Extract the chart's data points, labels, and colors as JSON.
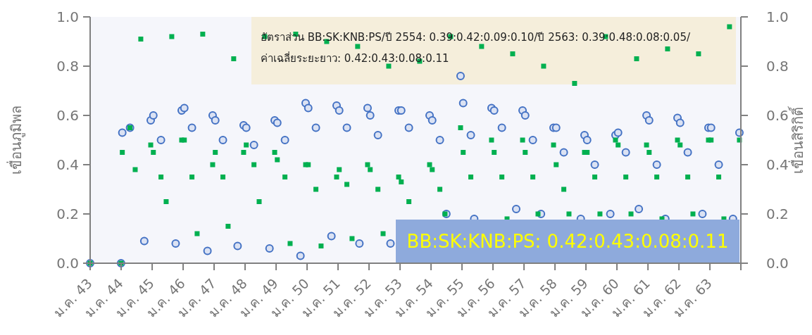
{
  "chart_data": {
    "type": "scatter",
    "ylabel": "เขื่อนภูมิพล",
    "y2label": "เขื่อนสิริกิติ์",
    "xlim": [
      "2543-01-01",
      "2564-01-01"
    ],
    "xticks": [
      {
        "value": "2543-01-01",
        "label": "ม.ค. 43"
      },
      {
        "value": "2544-01-01",
        "label": "ม.ค. 44"
      },
      {
        "value": "2545-01-01",
        "label": "ม.ค. 45"
      },
      {
        "value": "2546-01-01",
        "label": "ม.ค. 46"
      },
      {
        "value": "2547-01-01",
        "label": "ม.ค. 47"
      },
      {
        "value": "2548-01-01",
        "label": "ม.ค. 48"
      },
      {
        "value": "2549-01-01",
        "label": "ม.ค. 49"
      },
      {
        "value": "2550-01-01",
        "label": "ม.ค. 50"
      },
      {
        "value": "2551-01-01",
        "label": "ม.ค. 51"
      },
      {
        "value": "2552-01-01",
        "label": "ม.ค. 52"
      },
      {
        "value": "2553-01-01",
        "label": "ม.ค. 53"
      },
      {
        "value": "2554-01-01",
        "label": "ม.ค. 54"
      },
      {
        "value": "2555-01-01",
        "label": "ม.ค. 55"
      },
      {
        "value": "2556-01-01",
        "label": "ม.ค. 56"
      },
      {
        "value": "2557-01-01",
        "label": "ม.ค. 57"
      },
      {
        "value": "2558-01-01",
        "label": "ม.ค. 58"
      },
      {
        "value": "2559-01-01",
        "label": "ม.ค. 59"
      },
      {
        "value": "2560-01-01",
        "label": "ม.ค. 60"
      },
      {
        "value": "2561-01-01",
        "label": "ม.ค. 61"
      },
      {
        "value": "2562-01-01",
        "label": "ม.ค. 62"
      },
      {
        "value": "2563-01-01",
        "label": "ม.ค. 63"
      },
      {
        "value": "2564-01-01",
        "label": null
      }
    ],
    "ylim": [
      0,
      1
    ],
    "yticks": [
      {
        "value": 0,
        "label": "0.0"
      },
      {
        "value": 0.2,
        "label": "0.2"
      },
      {
        "value": 0.4,
        "label": "0.4"
      },
      {
        "value": 0.6,
        "label": "0.6"
      },
      {
        "value": 0.8,
        "label": "0.8"
      },
      {
        "value": 1,
        "label": "1.0"
      }
    ],
    "y2lim": [
      0,
      1
    ],
    "y2ticks": [
      {
        "value": 0,
        "label": "0.0"
      },
      {
        "value": 0.2,
        "label": "0.2"
      },
      {
        "value": 0.4,
        "label": "0.4"
      },
      {
        "value": 0.6,
        "label": "0.6"
      },
      {
        "value": 0.8,
        "label": "0.8"
      },
      {
        "value": 1,
        "label": "1.0"
      }
    ],
    "grid": false,
    "annotations": [
      "อัตราส่วน BB:SK:KNB:PS/ปี 2554: 0.39:0.42:0.09:0.10/ปี 2563: 0.39:0.48:0.08:0.05/ ค่าเฉลี่ยระยะยาว: 0.42:0.43:0.08:0.11",
      "BB:SK:KNB:PS:  0.42:0.43:0.08:0.11"
    ],
    "series": [
      {
        "color": "#4472c4",
        "marker": "circle",
        "x": [
          "2543-01-01",
          "2543-12-31",
          "2544-01-15",
          "2544-04-15",
          "2544-09-30",
          "2544-12-15",
          "2545-01-15",
          "2545-04-15",
          "2545-10-05",
          "2545-12-15",
          "2546-01-15",
          "2546-04-15",
          "2546-10-15",
          "2546-12-15",
          "2547-01-15",
          "2547-04-15",
          "2547-10-05",
          "2547-12-15",
          "2548-01-15",
          "2548-04-15",
          "2548-10-15",
          "2548-12-15",
          "2549-01-15",
          "2549-04-15",
          "2549-10-15",
          "2549-12-15",
          "2550-01-15",
          "2550-04-15",
          "2550-10-15",
          "2550-12-15",
          "2551-01-15",
          "2551-04-15",
          "2551-09-10",
          "2551-12-15",
          "2552-01-15",
          "2552-04-15",
          "2552-09-10",
          "2552-12-15",
          "2553-01-15",
          "2553-04-15",
          "2553-12-15",
          "2554-01-15",
          "2554-04-15",
          "2554-07-01",
          "2554-12-15",
          "2555-01-15",
          "2555-04-15",
          "2555-05-25",
          "2555-12-15",
          "2556-01-15",
          "2556-04-15",
          "2556-10-01",
          "2556-12-15",
          "2557-01-15",
          "2557-04-15",
          "2557-07-20",
          "2557-12-15",
          "2558-01-15",
          "2558-04-15",
          "2558-11-01",
          "2558-12-15",
          "2559-01-15",
          "2559-04-15",
          "2559-10-15",
          "2559-12-15",
          "2560-01-15",
          "2560-04-15",
          "2560-09-15",
          "2560-12-15",
          "2561-01-15",
          "2561-04-15",
          "2561-07-25",
          "2561-12-15",
          "2562-01-15",
          "2562-04-15",
          "2562-10-05",
          "2562-12-15",
          "2563-01-15",
          "2563-04-15",
          "2563-09-30",
          "2563-12-15"
        ],
        "values": [
          0,
          0,
          0.53,
          0.55,
          0.09,
          0.58,
          0.6,
          0.5,
          0.08,
          0.62,
          0.63,
          0.55,
          0.05,
          0.6,
          0.58,
          0.5,
          0.07,
          0.56,
          0.55,
          0.48,
          0.06,
          0.58,
          0.57,
          0.5,
          0.03,
          0.65,
          0.63,
          0.55,
          0.11,
          0.64,
          0.62,
          0.55,
          0.08,
          0.63,
          0.6,
          0.52,
          0.08,
          0.62,
          0.62,
          0.55,
          0.6,
          0.58,
          0.5,
          0.2,
          0.76,
          0.65,
          0.52,
          0.18,
          0.63,
          0.62,
          0.55,
          0.22,
          0.62,
          0.6,
          0.5,
          0.2,
          0.55,
          0.55,
          0.45,
          0.18,
          0.52,
          0.5,
          0.4,
          0.2,
          0.52,
          0.53,
          0.45,
          0.22,
          0.6,
          0.58,
          0.4,
          0.18,
          0.59,
          0.57,
          0.45,
          0.2,
          0.55,
          0.55,
          0.4,
          0.18,
          0.53
        ]
      },
      {
        "color": "#00b050",
        "marker": "square",
        "axis": "y2",
        "x": [
          "2543-01-01",
          "2543-12-31",
          "2544-01-15",
          "2544-04-15",
          "2544-06-15",
          "2544-08-20",
          "2544-12-15",
          "2545-01-15",
          "2545-04-15",
          "2545-06-15",
          "2545-08-20",
          "2545-12-15",
          "2546-01-15",
          "2546-04-15",
          "2546-06-15",
          "2546-08-20",
          "2546-12-15",
          "2547-01-15",
          "2547-04-15",
          "2547-06-15",
          "2547-08-20",
          "2547-12-15",
          "2548-01-15",
          "2548-04-15",
          "2548-06-15",
          "2548-08-20",
          "2548-12-15",
          "2549-01-15",
          "2549-04-15",
          "2549-06-15",
          "2549-08-20",
          "2549-12-15",
          "2550-01-15",
          "2550-04-15",
          "2550-06-15",
          "2550-08-20",
          "2550-12-15",
          "2551-01-15",
          "2551-04-15",
          "2551-06-15",
          "2551-08-20",
          "2551-12-15",
          "2552-01-15",
          "2552-04-15",
          "2552-06-15",
          "2552-08-20",
          "2552-12-15",
          "2553-01-15",
          "2553-04-15",
          "2553-08-20",
          "2553-12-15",
          "2554-01-15",
          "2554-04-15",
          "2554-06-15",
          "2554-08-20",
          "2554-12-15",
          "2555-01-15",
          "2555-04-15",
          "2555-08-20",
          "2555-12-15",
          "2556-01-15",
          "2556-04-15",
          "2556-06-15",
          "2556-08-20",
          "2556-12-15",
          "2557-01-15",
          "2557-04-15",
          "2557-06-15",
          "2557-08-20",
          "2557-12-15",
          "2558-01-15",
          "2558-04-15",
          "2558-06-15",
          "2558-08-20",
          "2558-12-15",
          "2559-01-15",
          "2559-04-15",
          "2559-06-15",
          "2559-08-20",
          "2559-12-15",
          "2560-01-15",
          "2560-04-15",
          "2560-06-15",
          "2560-08-20",
          "2560-12-15",
          "2561-01-15",
          "2561-04-15",
          "2561-06-15",
          "2561-08-20",
          "2561-12-15",
          "2562-01-15",
          "2562-04-15",
          "2562-06-15",
          "2562-08-20",
          "2562-12-15",
          "2563-01-15",
          "2563-04-15",
          "2563-06-15",
          "2563-08-20",
          "2563-12-15"
        ],
        "values": [
          0,
          0,
          0.45,
          0.55,
          0.38,
          0.91,
          0.48,
          0.45,
          0.35,
          0.25,
          0.92,
          0.5,
          0.5,
          0.35,
          0.12,
          0.93,
          0.4,
          0.45,
          0.35,
          0.15,
          0.83,
          0.45,
          0.48,
          0.4,
          0.25,
          0.92,
          0.45,
          0.42,
          0.35,
          0.08,
          0.93,
          0.4,
          0.4,
          0.3,
          0.07,
          0.9,
          0.35,
          0.38,
          0.32,
          0.1,
          0.88,
          0.4,
          0.38,
          0.3,
          0.12,
          0.8,
          0.35,
          0.33,
          0.25,
          0.82,
          0.4,
          0.38,
          0.3,
          0.2,
          0.92,
          0.55,
          0.45,
          0.35,
          0.88,
          0.5,
          0.45,
          0.35,
          0.18,
          0.85,
          0.5,
          0.45,
          0.35,
          0.2,
          0.8,
          0.48,
          0.4,
          0.3,
          0.2,
          0.73,
          0.45,
          0.45,
          0.35,
          0.2,
          0.92,
          0.5,
          0.48,
          0.35,
          0.2,
          0.83,
          0.48,
          0.45,
          0.35,
          0.18,
          0.87,
          0.5,
          0.48,
          0.35,
          0.2,
          0.85,
          0.5,
          0.5,
          0.35,
          0.18,
          0.96,
          0.5
        ]
      }
    ]
  }
}
